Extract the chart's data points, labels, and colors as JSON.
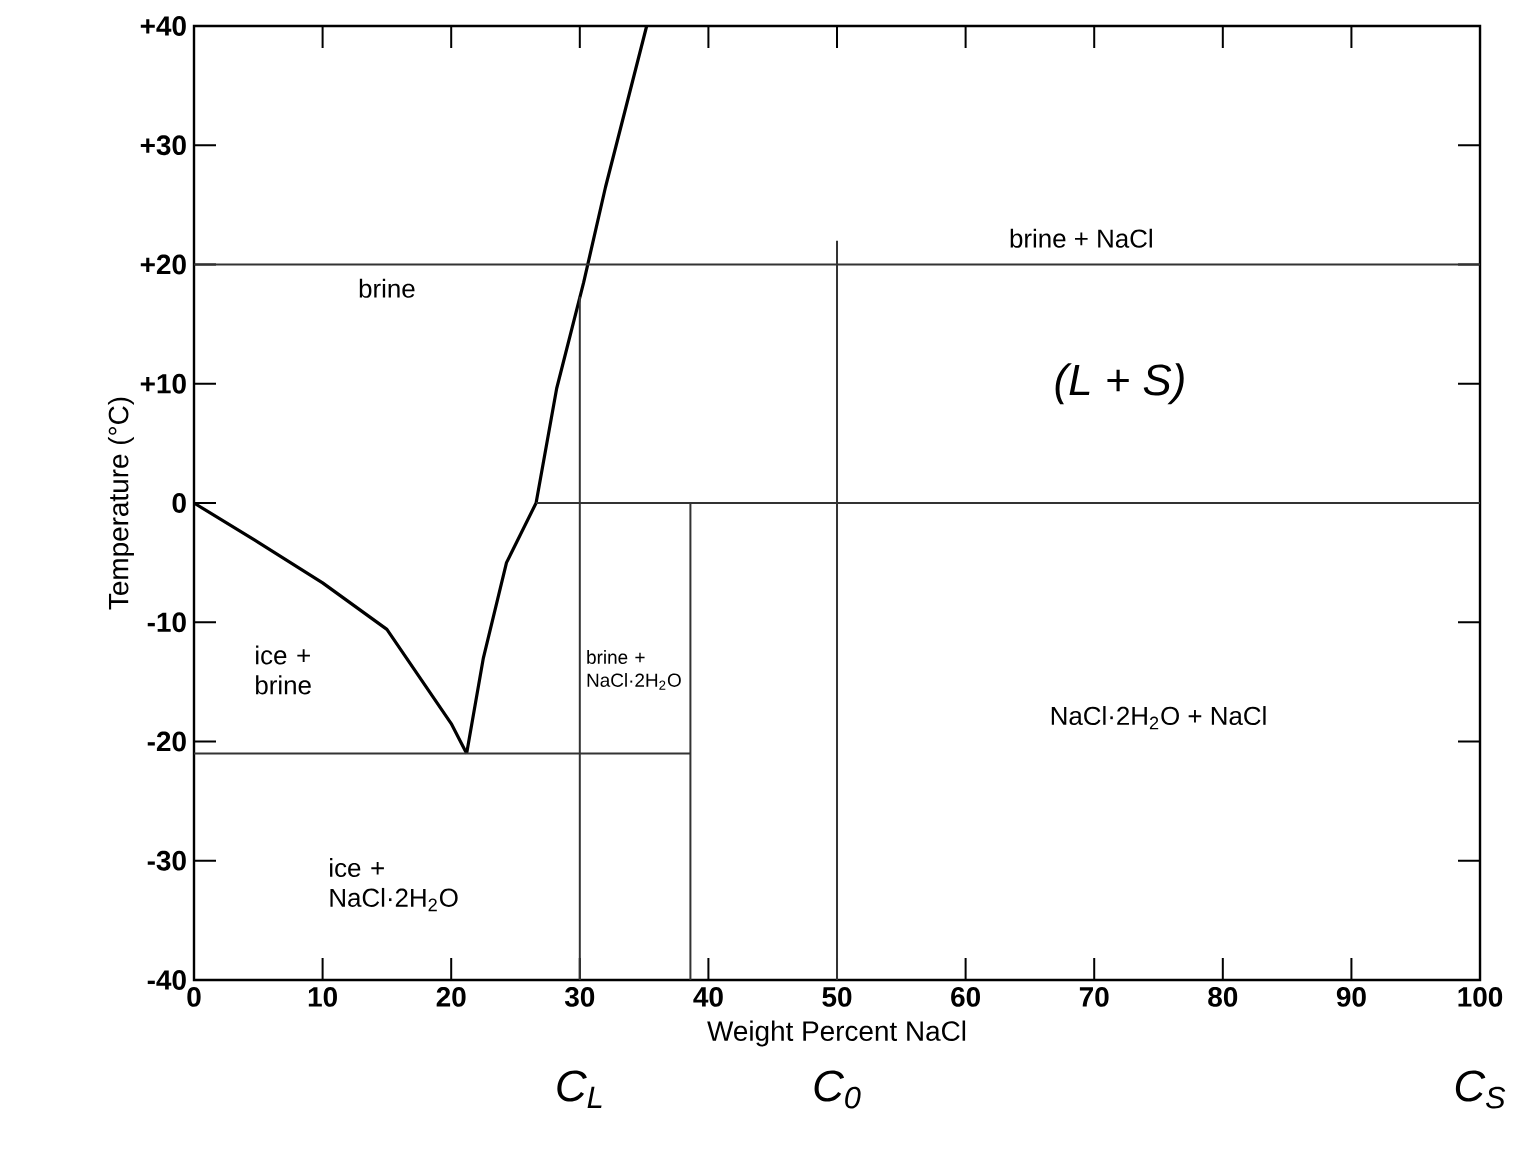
{
  "chart_data": {
    "type": "line",
    "xlabel": "Weight Percent NaCl",
    "ylabel": "Temperature (°C)",
    "xlim": [
      0,
      100
    ],
    "ylim": [
      -40,
      40
    ],
    "xticks": [
      0,
      10,
      20,
      30,
      40,
      50,
      60,
      70,
      80,
      90,
      100
    ],
    "yticks": [
      {
        "value": -40,
        "label": "-40"
      },
      {
        "value": -30,
        "label": "-30"
      },
      {
        "value": -20,
        "label": "-20"
      },
      {
        "value": -10,
        "label": "-10"
      },
      {
        "value": 0,
        "label": "0"
      },
      {
        "value": 10,
        "label": "+10"
      },
      {
        "value": 20,
        "label": "+20"
      },
      {
        "value": 30,
        "label": "+30"
      },
      {
        "value": 40,
        "label": "+40"
      }
    ],
    "series": [
      {
        "color": "#000000",
        "x": [
          0,
          5,
          10,
          15,
          20,
          21.2
        ],
        "values": [
          0,
          -3.3,
          -6.7,
          -10.6,
          -18.5,
          -21
        ]
      },
      {
        "color": "#000000",
        "x": [
          21.2,
          22.5,
          24.3,
          26.6,
          28.2,
          30.3,
          32,
          35.2
        ],
        "values": [
          -21,
          -13,
          -5,
          0,
          9.6,
          18.5,
          26.5,
          40
        ]
      },
      {
        "color": "#333333",
        "x": [
          0,
          100
        ],
        "values": [
          20,
          20
        ]
      },
      {
        "color": "#333333",
        "x": [
          0,
          38.6
        ],
        "values": [
          -21,
          -21
        ]
      },
      {
        "color": "#333333",
        "x": [
          38.6,
          38.6
        ],
        "values": [
          -40,
          0
        ]
      },
      {
        "color": "#333333",
        "x": [
          26.6,
          100
        ],
        "values": [
          0,
          0
        ]
      },
      {
        "color": "#333333",
        "x": [
          30,
          30
        ],
        "values": [
          -40,
          17.3
        ]
      },
      {
        "color": "#333333",
        "x": [
          50,
          50
        ],
        "values": [
          -40,
          22
        ]
      }
    ],
    "annotations": [
      "brine",
      "brine + NaCl",
      "(L + S)",
      "ice + brine",
      "brine + NaCl·2H$_{2}$O",
      "NaCl·2H$_{2}$O + NaCl",
      "ice + NaCl·2H$_{2}$O",
      {
        "text": "C$_{L}$",
        "x": 30,
        "y": -40
      },
      {
        "text": "C$_{0}$",
        "x": 50,
        "y": -40
      },
      "C$_{S}$"
    ]
  }
}
